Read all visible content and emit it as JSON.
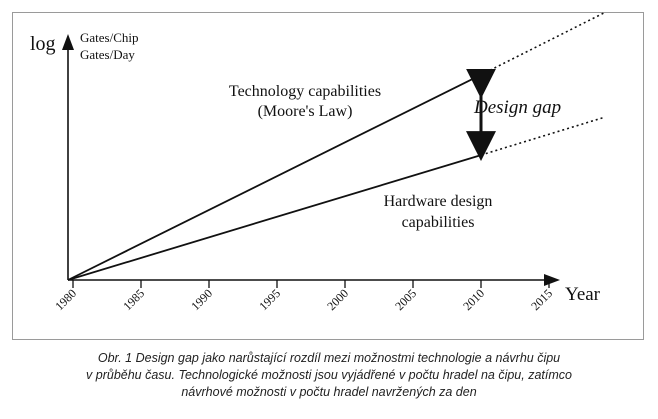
{
  "chart_data": {
    "type": "line",
    "title": "",
    "xlabel": "Year",
    "ylabel_prefix": "log",
    "ylabel_lines": [
      "Gates/Chip",
      "Gates/Day"
    ],
    "x_ticks": [
      1980,
      1985,
      1990,
      1995,
      2000,
      2005,
      2010,
      2015
    ],
    "x_range": [
      1980,
      2019
    ],
    "y_scale": "log",
    "solid_until": 2010,
    "series": [
      {
        "name": "Technology capabilities (Moore's Law)",
        "label_lines": [
          "Technology capabilities",
          "(Moore's Law)"
        ],
        "x": [
          1980,
          2019
        ],
        "y_rel": [
          0,
          0.92
        ]
      },
      {
        "name": "Hardware design capabilities",
        "label_lines": [
          "Hardware design",
          "capabilities"
        ],
        "x": [
          1980,
          2019
        ],
        "y_rel": [
          0,
          0.56
        ]
      }
    ],
    "annotation": {
      "text": "Design gap",
      "at_x": 2010
    },
    "grid": false,
    "legend": "none"
  },
  "caption": [
    "Obr. 1  Design gap jako narůstající rozdíl mezi možnostmi technologie a návrhu čipu",
    "v průběhu času. Technologické možnosti jsou vyjádřené v počtu hradel na čipu, zatímco",
    "návrhové možnosti v počtu hradel navržených za den"
  ]
}
